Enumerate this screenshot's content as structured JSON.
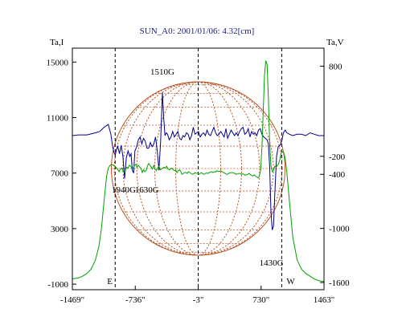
{
  "chart_data": {
    "type": "line",
    "title": "SUN_A0: 2001/01/06: 4.32[cm]",
    "x_axis": {
      "range": [
        -1469,
        1463
      ],
      "ticks": [
        {
          "value": -1469,
          "label": "-1469\""
        },
        {
          "value": -736,
          "label": "-736\""
        },
        {
          "value": -3,
          "label": "-3\""
        },
        {
          "value": 730,
          "label": "730\""
        },
        {
          "value": 1463,
          "label": "1463\""
        }
      ]
    },
    "left_axis": {
      "label": "Ta,I",
      "range": [
        -1400,
        16000
      ],
      "ticks": [
        15000,
        11000,
        7000,
        3000,
        -1000
      ],
      "tick_labels": [
        "15000",
        "11000",
        "7000",
        "3000",
        "-1000"
      ]
    },
    "right_axis": {
      "label": "Ta,V",
      "range": [
        -1680,
        1000
      ],
      "ticks": [
        800,
        -200,
        -400,
        -1000,
        -1600
      ],
      "tick_labels": [
        "800",
        "-200",
        "-400",
        "-1000",
        "-1600"
      ]
    },
    "limb_markers": [
      {
        "x": -970,
        "label": "E"
      },
      {
        "x": 970,
        "label": "W"
      }
    ],
    "center_marker_x": -3,
    "annotations": [
      {
        "x": -420,
        "label": "1510G"
      },
      {
        "x": -870,
        "label": "1940G"
      },
      {
        "x": -600,
        "label": "1630G"
      },
      {
        "x": 850,
        "label": "1430G"
      }
    ],
    "colors": {
      "intensity": "#00008b",
      "polarization": "#00a000",
      "disk": "#b8562a",
      "title": "#1b1b7a"
    },
    "series": [
      {
        "axis": "left",
        "color": "#00008b",
        "x": [
          -1469,
          -1400,
          -1300,
          -1200,
          -1150,
          -1100,
          -1050,
          -1020,
          -1000,
          -985,
          -970,
          -955,
          -940,
          -920,
          -900,
          -880,
          -860,
          -840,
          -820,
          -800,
          -785,
          -770,
          -755,
          -740,
          -720,
          -700,
          -680,
          -660,
          -640,
          -620,
          -600,
          -580,
          -560,
          -540,
          -520,
          -500,
          -480,
          -460,
          -440,
          -420,
          -405,
          -390,
          -375,
          -360,
          -340,
          -320,
          -300,
          -280,
          -260,
          -240,
          -220,
          -200,
          -180,
          -160,
          -140,
          -120,
          -100,
          -80,
          -60,
          -40,
          -20,
          0,
          20,
          40,
          60,
          80,
          100,
          120,
          140,
          160,
          180,
          200,
          220,
          240,
          260,
          280,
          300,
          320,
          340,
          360,
          380,
          400,
          420,
          440,
          460,
          480,
          500,
          520,
          540,
          560,
          580,
          600,
          620,
          640,
          660,
          680,
          700,
          720,
          740,
          760,
          780,
          800,
          815,
          830,
          845,
          860,
          875,
          890,
          910,
          930,
          950,
          970,
          990,
          1010,
          1030,
          1060,
          1100,
          1150,
          1200,
          1250,
          1300,
          1350,
          1400,
          1463
        ],
        "y": [
          9700,
          9750,
          9750,
          9900,
          10000,
          10300,
          10500,
          9800,
          8900,
          8500,
          8300,
          8700,
          8900,
          8400,
          9000,
          8200,
          6600,
          8100,
          8600,
          8200,
          8400,
          7200,
          7000,
          8600,
          8900,
          9400,
          9600,
          9100,
          9500,
          9300,
          8800,
          8800,
          9200,
          8900,
          9100,
          9600,
          8600,
          7200,
          9300,
          12800,
          11000,
          9700,
          9900,
          9800,
          9400,
          9600,
          10000,
          9600,
          9800,
          10000,
          9500,
          9400,
          9700,
          9600,
          9900,
          9800,
          9400,
          9700,
          10300,
          9800,
          9900,
          10000,
          9600,
          9800,
          9900,
          9700,
          10100,
          9800,
          9700,
          10000,
          10300,
          9900,
          9700,
          9800,
          10000,
          9800,
          9600,
          10200,
          9500,
          9800,
          10100,
          9900,
          9700,
          9900,
          9700,
          10000,
          10200,
          10300,
          9800,
          9900,
          10200,
          9600,
          10000,
          9800,
          9900,
          9700,
          10100,
          10200,
          9800,
          9600,
          9500,
          9400,
          9100,
          7500,
          4200,
          2900,
          3200,
          5500,
          8200,
          8900,
          9000,
          9300,
          9900,
          10100,
          9900,
          9800,
          9700,
          9800,
          9800,
          9700,
          9900,
          9800,
          9700,
          9700
        ]
      },
      {
        "axis": "right",
        "color": "#00a000",
        "x": [
          -1469,
          -1400,
          -1350,
          -1300,
          -1250,
          -1200,
          -1160,
          -1130,
          -1110,
          -1090,
          -1070,
          -1050,
          -1030,
          -1010,
          -990,
          -970,
          -955,
          -940,
          -925,
          -910,
          -895,
          -880,
          -865,
          -850,
          -835,
          -820,
          -805,
          -790,
          -775,
          -760,
          -745,
          -730,
          -715,
          -700,
          -685,
          -670,
          -655,
          -640,
          -625,
          -610,
          -595,
          -580,
          -565,
          -550,
          -535,
          -520,
          -505,
          -490,
          -475,
          -460,
          -445,
          -430,
          -415,
          -400,
          -385,
          -370,
          -355,
          -340,
          -325,
          -310,
          -295,
          -280,
          -265,
          -250,
          -235,
          -220,
          -205,
          -190,
          -175,
          -160,
          -145,
          -130,
          -115,
          -100,
          -85,
          -70,
          -55,
          -40,
          -25,
          -10,
          5,
          20,
          35,
          50,
          65,
          80,
          95,
          110,
          125,
          140,
          155,
          170,
          185,
          200,
          215,
          230,
          245,
          260,
          275,
          290,
          305,
          320,
          335,
          350,
          365,
          380,
          395,
          410,
          425,
          440,
          455,
          470,
          485,
          500,
          515,
          530,
          545,
          560,
          575,
          590,
          605,
          620,
          635,
          650,
          665,
          680,
          695,
          710,
          725,
          740,
          755,
          770,
          785,
          800,
          815,
          830,
          845,
          860,
          875,
          890,
          905,
          920,
          935,
          950,
          965,
          980,
          995,
          1010,
          1030,
          1060,
          1100,
          1150,
          1200,
          1250,
          1300,
          1350,
          1400,
          1463
        ],
        "y": [
          -1560,
          -1550,
          -1530,
          -1500,
          -1450,
          -1350,
          -1200,
          -1000,
          -800,
          -600,
          -420,
          -330,
          -300,
          -290,
          -300,
          -310,
          -330,
          -350,
          -370,
          -340,
          -330,
          -360,
          -380,
          -350,
          -320,
          -330,
          -300,
          -310,
          -340,
          -330,
          -300,
          -290,
          -320,
          -300,
          -320,
          -330,
          -380,
          -350,
          -370,
          -360,
          -310,
          -280,
          -300,
          -320,
          -340,
          -300,
          -340,
          -360,
          -330,
          -310,
          -350,
          -340,
          -330,
          -320,
          -330,
          -310,
          -340,
          -350,
          -340,
          -330,
          -350,
          -360,
          -350,
          -380,
          -360,
          -350,
          -370,
          -400,
          -390,
          -380,
          -380,
          -390,
          -370,
          -380,
          -390,
          -400,
          -395,
          -380,
          -390,
          -385,
          -400,
          -390,
          -380,
          -395,
          -400,
          -390,
          -385,
          -390,
          -380,
          -375,
          -370,
          -380,
          -370,
          -375,
          -360,
          -365,
          -370,
          -360,
          -370,
          -380,
          -385,
          -395,
          -400,
          -390,
          -385,
          -380,
          -380,
          -385,
          -390,
          -400,
          -395,
          -390,
          -390,
          -400,
          -395,
          -400,
          -410,
          -405,
          -400,
          -390,
          -405,
          -410,
          -420,
          -405,
          -420,
          -430,
          -440,
          -420,
          -350,
          -100,
          300,
          700,
          860,
          820,
          450,
          -50,
          -300,
          -370,
          -360,
          -310,
          -320,
          -300,
          -280,
          -230,
          -160,
          -150,
          -160,
          -220,
          -380,
          -700,
          -1100,
          -1350,
          -1450,
          -1500,
          -1530,
          -1560,
          -1580,
          -1590
        ]
      }
    ]
  }
}
